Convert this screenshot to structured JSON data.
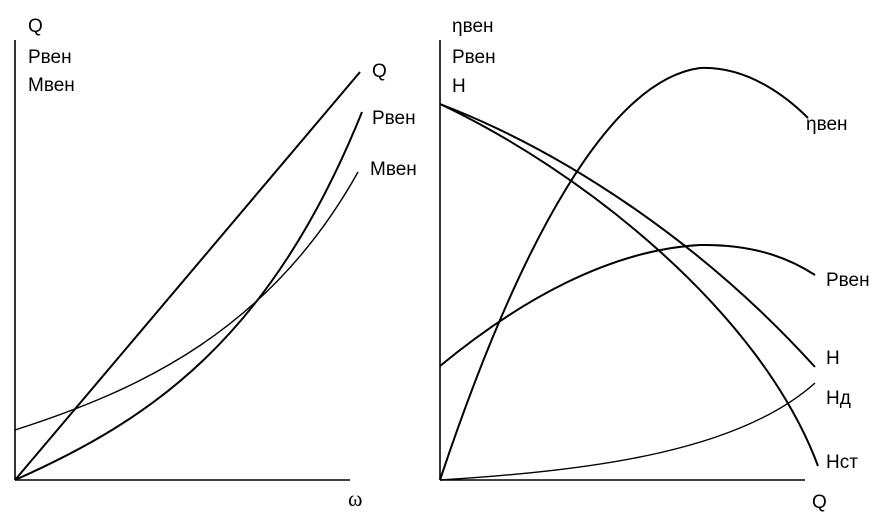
{
  "chart_data": [
    {
      "type": "line",
      "y_axis_labels": [
        "Q",
        "Pвен",
        "Mвен"
      ],
      "x_axis_label": "ω",
      "series": [
        {
          "name": "Q",
          "points": [
            [
              0,
              0
            ],
            [
              1,
              1
            ]
          ]
        },
        {
          "name": "Pвен",
          "points": [
            [
              0,
              0
            ],
            [
              0.25,
              0.06
            ],
            [
              0.5,
              0.2
            ],
            [
              0.75,
              0.5
            ],
            [
              1,
              0.89
            ]
          ]
        },
        {
          "name": "Mвен",
          "points": [
            [
              0,
              0.12
            ],
            [
              0.25,
              0.22
            ],
            [
              0.5,
              0.38
            ],
            [
              0.75,
              0.58
            ],
            [
              1,
              0.76
            ]
          ]
        }
      ]
    },
    {
      "type": "line",
      "y_axis_labels": [
        "ηвен",
        "Pвен",
        "H"
      ],
      "x_axis_label": "Q",
      "series": [
        {
          "name": "ηвен",
          "points": [
            [
              0,
              0
            ],
            [
              0.25,
              0.65
            ],
            [
              0.5,
              0.95
            ],
            [
              0.72,
              1.0
            ],
            [
              1,
              0.85
            ]
          ]
        },
        {
          "name": "Pвен",
          "points": [
            [
              0,
              0.28
            ],
            [
              0.3,
              0.5
            ],
            [
              0.55,
              0.6
            ],
            [
              0.75,
              0.62
            ],
            [
              1,
              0.5
            ]
          ]
        },
        {
          "name": "H",
          "points": [
            [
              0,
              0.9
            ],
            [
              0.4,
              0.7
            ],
            [
              0.7,
              0.48
            ],
            [
              1,
              0.28
            ]
          ]
        },
        {
          "name": "Hд",
          "points": [
            [
              0,
              0
            ],
            [
              0.4,
              0.04
            ],
            [
              0.7,
              0.1
            ],
            [
              1,
              0.24
            ]
          ]
        },
        {
          "name": "Hст",
          "points": [
            [
              0,
              0.9
            ],
            [
              0.5,
              0.55
            ],
            [
              0.8,
              0.25
            ],
            [
              1,
              0.0
            ]
          ]
        }
      ]
    }
  ]
}
